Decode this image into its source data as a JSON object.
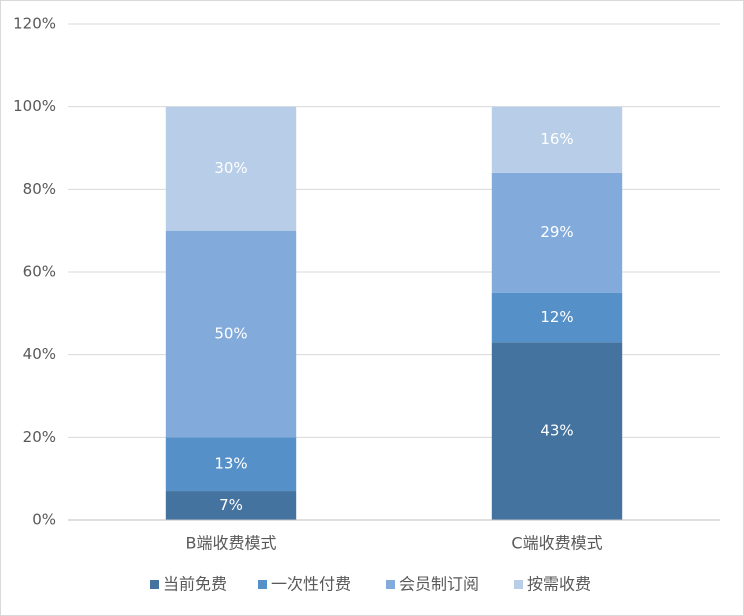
{
  "chart_data": {
    "type": "stacked_bar",
    "categories": [
      "B端收费模式",
      "C端收费模式"
    ],
    "series": [
      {
        "name": "当前免费",
        "color": "#44739f",
        "values": [
          7,
          43
        ],
        "value_labels": [
          "7%",
          "43%"
        ]
      },
      {
        "name": "一次性付费",
        "color": "#5590c8",
        "values": [
          13,
          12
        ],
        "value_labels": [
          "13%",
          "12%"
        ]
      },
      {
        "name": "会员制订阅",
        "color": "#82abdc",
        "values": [
          50,
          29
        ],
        "value_labels": [
          "50%",
          "29%"
        ]
      },
      {
        "name": "按需收费",
        "color": "#b8cde7",
        "values": [
          30,
          16
        ],
        "value_labels": [
          "30%",
          "16%"
        ]
      }
    ],
    "ylim": [
      0,
      120
    ],
    "yticks": [
      {
        "value": 0,
        "label": "0%"
      },
      {
        "value": 20,
        "label": "20%"
      },
      {
        "value": 40,
        "label": "40%"
      },
      {
        "value": 60,
        "label": "60%"
      },
      {
        "value": 80,
        "label": "80%"
      },
      {
        "value": 100,
        "label": "100%"
      },
      {
        "value": 120,
        "label": "120%"
      }
    ],
    "grid": true,
    "legend": "bottom"
  }
}
